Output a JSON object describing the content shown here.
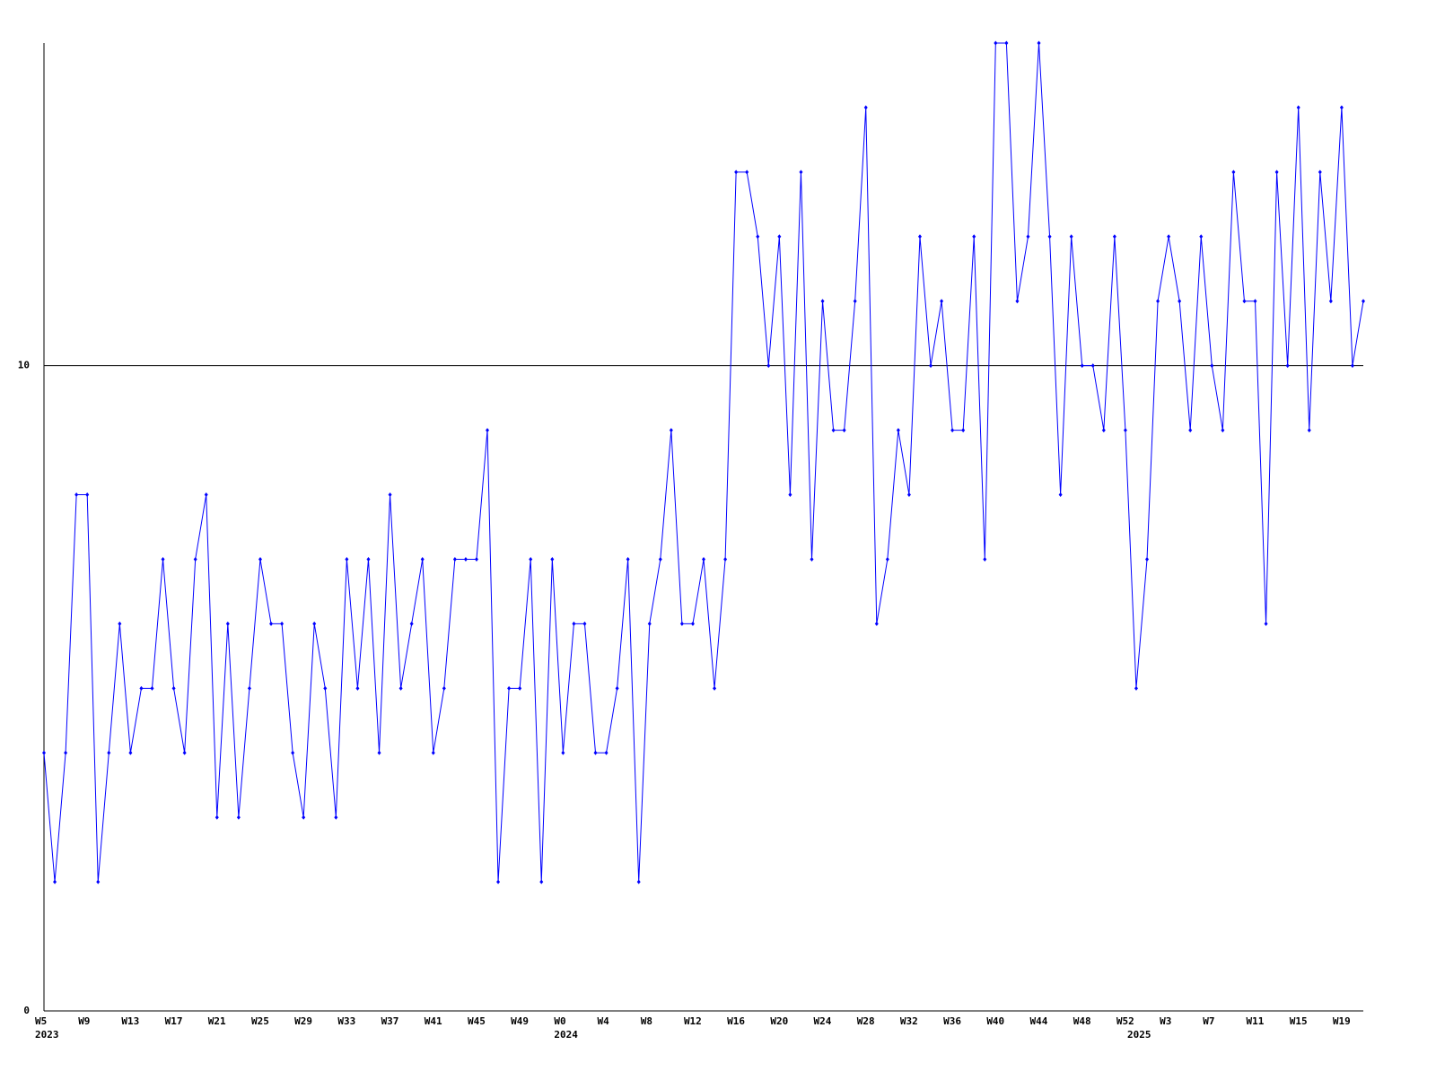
{
  "chart_data": {
    "type": "line",
    "categories": [
      "W5",
      null,
      null,
      null,
      "W9",
      null,
      null,
      null,
      "W13",
      null,
      null,
      null,
      "W17",
      null,
      null,
      null,
      "W21",
      null,
      null,
      null,
      "W25",
      null,
      null,
      null,
      "W29",
      null,
      null,
      null,
      "W33",
      null,
      null,
      null,
      "W37",
      null,
      null,
      null,
      "W41",
      null,
      null,
      null,
      "W45",
      null,
      null,
      null,
      "W49",
      null,
      null,
      null,
      "W0",
      null,
      null,
      null,
      "W4",
      null,
      null,
      null,
      "W8",
      null,
      null,
      null,
      "W12",
      null,
      null,
      null,
      "W16",
      null,
      null,
      null,
      "W20",
      null,
      null,
      null,
      "W24",
      null,
      null,
      null,
      "W28",
      null,
      null,
      null,
      "W32",
      null,
      null,
      null,
      "W36",
      null,
      null,
      null,
      "W40",
      null,
      null,
      null,
      "W44",
      null,
      null,
      null,
      "W48",
      null,
      null,
      null,
      "W52",
      null,
      null,
      null,
      "W3",
      null,
      null,
      null,
      "W7",
      null,
      null,
      null,
      "W11",
      null,
      null,
      null,
      "W15",
      null,
      null,
      null,
      "W19",
      null,
      null
    ],
    "category_years": [
      "2023",
      null,
      null,
      null,
      null,
      null,
      null,
      null,
      null,
      null,
      null,
      null,
      null,
      null,
      null,
      null,
      null,
      null,
      null,
      null,
      null,
      null,
      null,
      null,
      null,
      null,
      null,
      null,
      null,
      null,
      null,
      null,
      null,
      null,
      null,
      null,
      null,
      null,
      null,
      null,
      null,
      null,
      null,
      null,
      null,
      null,
      null,
      null,
      "2024",
      null,
      null,
      null,
      null,
      null,
      null,
      null,
      null,
      null,
      null,
      null,
      null,
      null,
      null,
      null,
      null,
      null,
      null,
      null,
      null,
      null,
      null,
      null,
      null,
      null,
      null,
      null,
      null,
      null,
      null,
      null,
      null,
      null,
      null,
      null,
      null,
      null,
      null,
      null,
      null,
      null,
      null,
      null,
      null,
      null,
      null,
      null,
      null,
      null,
      null,
      null,
      null,
      "2025",
      null,
      null,
      null,
      null,
      null,
      null,
      null,
      null,
      null,
      null,
      null,
      null,
      null,
      null,
      null,
      null,
      null,
      null,
      null,
      null,
      null
    ],
    "series": [
      {
        "color": "#0000ff",
        "values": [
          4,
          2,
          4,
          8,
          8,
          2,
          4,
          6,
          4,
          5,
          5,
          7,
          5,
          4,
          7,
          8,
          3,
          6,
          3,
          5,
          7,
          6,
          6,
          4,
          3,
          6,
          5,
          3,
          7,
          5,
          7,
          4,
          8,
          5,
          6,
          7,
          4,
          5,
          7,
          7,
          7,
          9,
          2,
          5,
          5,
          7,
          2,
          7,
          4,
          6,
          6,
          4,
          4,
          5,
          7,
          2,
          6,
          7,
          9,
          6,
          6,
          7,
          5,
          7,
          13,
          13,
          12,
          10,
          12,
          8,
          13,
          7,
          11,
          9,
          9,
          11,
          14,
          6,
          7,
          9,
          8,
          12,
          10,
          11,
          9,
          9,
          12,
          7,
          15,
          15,
          11,
          12,
          15,
          12,
          8,
          12,
          10,
          10,
          9,
          12,
          9,
          5,
          7,
          11,
          12,
          11,
          9,
          12,
          10,
          9,
          13,
          11,
          11,
          6,
          13,
          10,
          14,
          9,
          13,
          11,
          14,
          10,
          11
        ]
      }
    ],
    "ylim": [
      0,
      15
    ],
    "yticks": [
      0,
      10
    ],
    "grid": true
  }
}
